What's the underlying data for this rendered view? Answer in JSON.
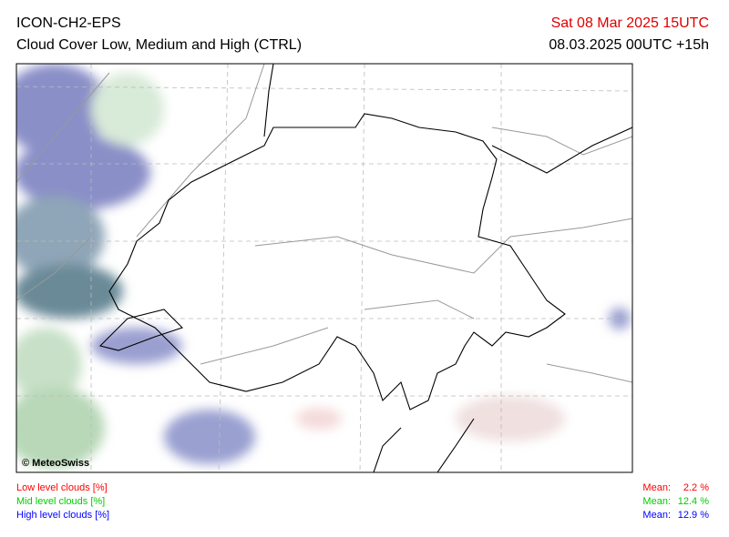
{
  "header": {
    "model": "ICON-CH2-EPS",
    "title": "Cloud Cover Low, Medium and High (CTRL)",
    "valid_time": "Sat 08 Mar 2025 15UTC",
    "run": "08.03.2025 00UTC +15h"
  },
  "map": {
    "copyright": "© MeteoSwiss"
  },
  "legend": {
    "items": [
      {
        "label": "Low level clouds [%]",
        "mean_label": "Mean:",
        "mean": "2.2 %",
        "color": "#ff0000"
      },
      {
        "label": "Mid level clouds [%]",
        "mean_label": "Mean:",
        "mean": "12.4 %",
        "color": "#00cc00"
      },
      {
        "label": "High level clouds [%]",
        "mean_label": "Mean:",
        "mean": "12.9 %",
        "color": "#0000ff"
      }
    ]
  }
}
